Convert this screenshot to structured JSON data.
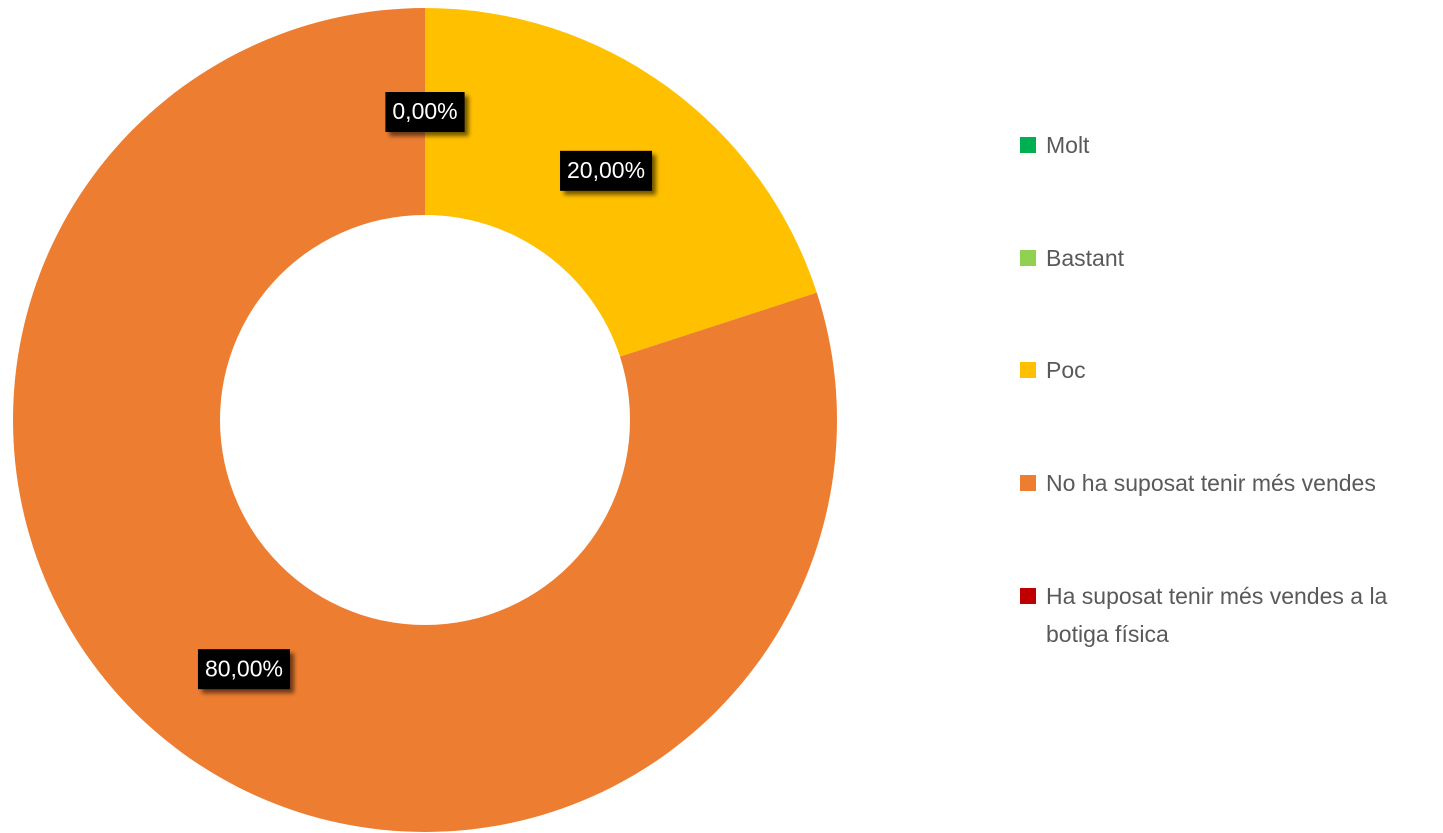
{
  "chart_data": {
    "type": "donut",
    "categories": [
      "Molt",
      "Bastant",
      "Poc",
      "No ha suposat tenir més vendes",
      "Ha suposat tenir més vendes a la botiga física"
    ],
    "values": [
      0,
      0,
      20,
      80,
      0
    ],
    "value_labels": [
      "0,00%",
      null,
      "20,00%",
      "80,00%",
      null
    ],
    "colors": [
      "#00b050",
      "#92d050",
      "#ffc000",
      "#ed7d31",
      "#c00000"
    ],
    "legend": "right"
  }
}
